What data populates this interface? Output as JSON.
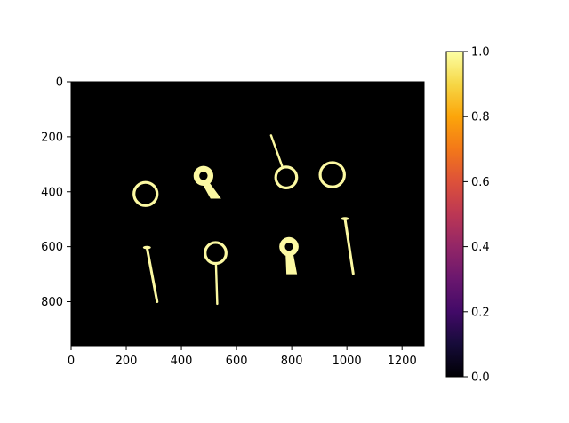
{
  "chart_data": {
    "type": "heatmap",
    "title": "",
    "xlabel": "",
    "ylabel": "",
    "colormap": "inferno",
    "image_width": 1280,
    "image_height": 960,
    "xlim": [
      0,
      1280
    ],
    "ylim": [
      960,
      0
    ],
    "x_ticks": [
      0,
      200,
      400,
      600,
      800,
      1000,
      1200
    ],
    "y_ticks": [
      0,
      200,
      400,
      600,
      800
    ],
    "colorbar": {
      "range": [
        0.0,
        1.0
      ],
      "ticks": [
        "0.0",
        "0.2",
        "0.4",
        "0.6",
        "0.8",
        "1.0"
      ]
    },
    "background_value": 0.0,
    "foreground_value": 1.0,
    "background_color": "#000000",
    "foreground_color": "#fcf9a2",
    "objects": [
      {
        "kind": "ring",
        "cx": 270,
        "cy": 408,
        "r": 42
      },
      {
        "kind": "hole-tab",
        "x1": 480,
        "y1": 342,
        "x2": 525,
        "y2": 425,
        "ring_r": 36
      },
      {
        "kind": "ring-pin",
        "cx": 780,
        "cy": 348,
        "r": 38,
        "tip_x": 725,
        "tip_y": 195
      },
      {
        "kind": "ring",
        "cx": 947,
        "cy": 338,
        "r": 44
      },
      {
        "kind": "pin",
        "x1": 275,
        "y1": 603,
        "x2": 312,
        "y2": 800
      },
      {
        "kind": "ring-pin",
        "cx": 524,
        "cy": 623,
        "r": 38,
        "tip_x": 530,
        "tip_y": 808
      },
      {
        "kind": "hole-tab",
        "x1": 790,
        "y1": 600,
        "x2": 800,
        "y2": 700,
        "ring_r": 35
      },
      {
        "kind": "pin",
        "x1": 993,
        "y1": 498,
        "x2": 1023,
        "y2": 698
      }
    ]
  }
}
